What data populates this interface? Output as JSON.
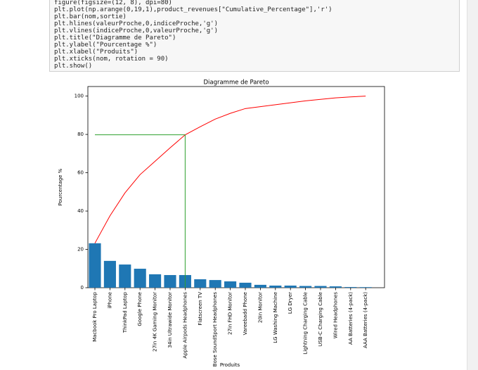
{
  "code_lines": [
    "figure(figsize=(12, 8), dpi=80)",
    "plt.plot(np.arange(0,19,1),product_revenues[\"Cumulative_Percentage\"],'r')",
    "plt.bar(nom,sortie)",
    "plt.hlines(valeurProche,0,indiceProche,'g')",
    "plt.vlines(indiceProche,0,valeurProche,'g')",
    "plt.title(\"Diagramme de Pareto\")",
    "plt.ylabel(\"Pourcentage %\")",
    "plt.xlabel(\"Produits\")",
    "plt.xticks(nom, rotation = 90)",
    "plt.show()"
  ],
  "chart_data": {
    "type": "bar",
    "title": "Diagramme de Pareto",
    "x_label": "Produits",
    "y_label": "Pourcentage %",
    "categories": [
      "Macbook Pro Laptop",
      "iPhone",
      "ThinkPad Laptop",
      "Google Phone",
      "27in 4K Gaming Monitor",
      "34in Ultrawide Monitor",
      "Apple Airpods Headphones",
      "Flatscreen TV",
      "Bose SoundSport Headphones",
      "27in FHD Monitor",
      "Vareebadd Phone",
      "20in Monitor",
      "LG Washing Machine",
      "LG Dryer",
      "Lightning Charging Cable",
      "USB-C Charging Cable",
      "Wired Headphones",
      "AA Batteries (4-pack)",
      "AAA Batteries (4-pack)"
    ],
    "values": [
      23.2,
      14,
      12.1,
      9.9,
      7,
      6.6,
      6.6,
      4.4,
      4,
      3.3,
      2.6,
      1.5,
      1.1,
      1.1,
      0.9,
      0.9,
      0.7,
      0.35,
      0.3
    ],
    "color": "#1f77b4",
    "line": {
      "color": "#ff0000",
      "values": [
        23.2,
        37.5,
        49.5,
        59,
        66,
        73,
        79.8,
        84,
        88,
        91,
        93.5,
        94.5,
        95.5,
        96.5,
        97.5,
        98.3,
        99.1,
        99.6,
        100
      ]
    },
    "threshold": {
      "color": "#2ca02c",
      "y": 79.8,
      "x_range": [
        0,
        6
      ]
    },
    "ylim": [
      0,
      105
    ],
    "yticks": [
      0,
      20,
      40,
      60,
      80,
      100
    ]
  }
}
